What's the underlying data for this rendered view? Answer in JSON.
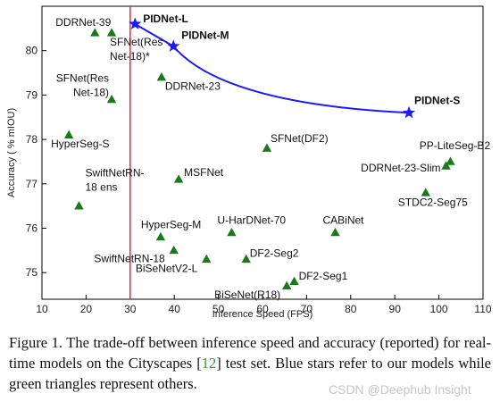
{
  "chart_data": {
    "type": "scatter",
    "title": "",
    "xlabel": "Inference Speed (FPS)",
    "ylabel": "Accuracy ( % mIOU)",
    "xlim": [
      10,
      110
    ],
    "ylim": [
      74.4,
      81.0
    ],
    "xticks": [
      "10",
      "20",
      "30",
      "40",
      "50",
      "60",
      "70",
      "80",
      "90",
      "100",
      "110"
    ],
    "yticks": [
      "75",
      "76",
      "77",
      "78",
      "79",
      "80"
    ],
    "xtick_values": [
      10,
      20,
      30,
      40,
      50,
      60,
      70,
      80,
      90,
      100,
      110
    ],
    "ytick_values": [
      75,
      76,
      77,
      78,
      79,
      80
    ],
    "reference_line_x": 30,
    "colors": {
      "ours": "#1a1aff",
      "others": "#1a7a1a",
      "refline": "#e03030",
      "curve": "#1a1aff"
    },
    "series": [
      {
        "name": "ours",
        "marker": "star",
        "points": [
          {
            "label": "PIDNet-L",
            "x": 31.1,
            "y": 80.6
          },
          {
            "label": "PIDNet-M",
            "x": 39.8,
            "y": 80.1
          },
          {
            "label": "PIDNet-S",
            "x": 93.2,
            "y": 78.6
          }
        ]
      },
      {
        "name": "others",
        "marker": "triangle",
        "points": [
          {
            "label": "DDRNet-39",
            "x": 22.0,
            "y": 80.4
          },
          {
            "label": "SFNet(Res|Net-18)*",
            "x": 25.8,
            "y": 80.4
          },
          {
            "label": "DDRNet-23",
            "x": 37.1,
            "y": 79.4
          },
          {
            "label": "SFNet(Res|Net-18)",
            "x": 25.8,
            "y": 78.9
          },
          {
            "label": "HyperSeg-S",
            "x": 16.1,
            "y": 78.1
          },
          {
            "label": "SFNet(DF2)",
            "x": 61.0,
            "y": 77.8
          },
          {
            "label": "MSFNet",
            "x": 41.0,
            "y": 77.1
          },
          {
            "label": "SwiftNetRN-|18 ens",
            "x": 18.4,
            "y": 76.5
          },
          {
            "label": "HyperSeg-M",
            "x": 36.9,
            "y": 75.8
          },
          {
            "label": "U-HarDNet-70",
            "x": 53.0,
            "y": 75.9
          },
          {
            "label": "CABiNet",
            "x": 76.5,
            "y": 75.9
          },
          {
            "label": "SwiftNetRN-18",
            "x": 39.9,
            "y": 75.5
          },
          {
            "label": "BiSeNetV2-L",
            "x": 47.3,
            "y": 75.3
          },
          {
            "label": "DF2-Seg2",
            "x": 56.3,
            "y": 75.3
          },
          {
            "label": "BiSeNet(R18)",
            "x": 65.5,
            "y": 74.7
          },
          {
            "label": "DF2-Seg1",
            "x": 67.2,
            "y": 74.8
          },
          {
            "label": "PP-LiteSeg-B2",
            "x": 102.6,
            "y": 77.5
          },
          {
            "label": "DDRNet-23-Slim",
            "x": 101.6,
            "y": 77.4
          },
          {
            "label": "STDC2-Seg75",
            "x": 97.0,
            "y": 76.8
          }
        ]
      }
    ]
  },
  "caption": {
    "text_before": "Figure 1. The trade-off between inference speed and accuracy (reported) for real-time models on the Cityscapes [",
    "ref": "12",
    "text_after": "] test set. Blue stars refer to our models while green triangles represent others."
  },
  "watermark": "CSDN @Deephub Insight"
}
